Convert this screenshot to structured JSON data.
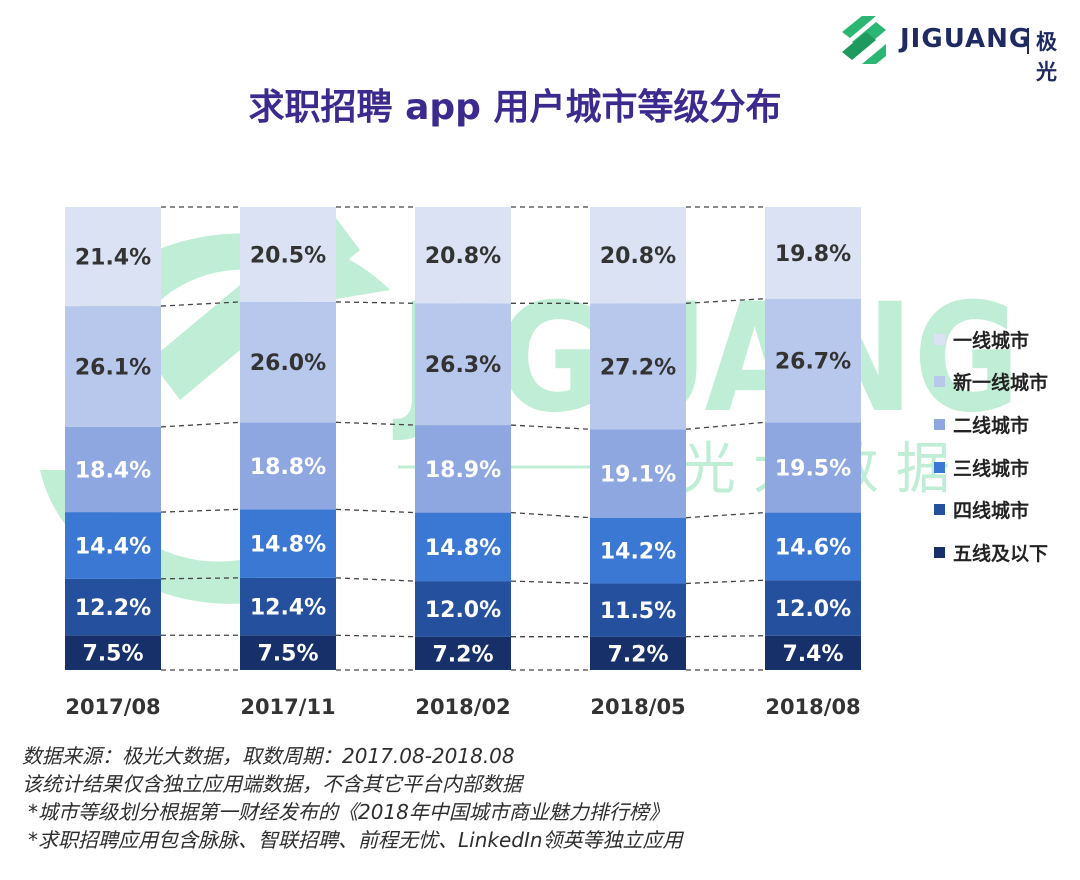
{
  "brand": {
    "name": "JIGUANG",
    "name_cn": "极光",
    "watermark": "JIGUANG",
    "watermark_cn": "极 光 大 数 据"
  },
  "title": "求职招聘 app 用户城市等级分布",
  "colors": {
    "一线城市": "#dbe2f4",
    "新一线城市": "#b8c7ec",
    "二线城市": "#8fa7e0",
    "三线城市": "#3a78d4",
    "四线城市": "#25509e",
    "五线及以下": "#17306a",
    "watermark": "#8ce0b3"
  },
  "chart_data": {
    "type": "bar",
    "stacked": true,
    "percent": true,
    "categories": [
      "2017/08",
      "2017/11",
      "2018/02",
      "2018/05",
      "2018/08"
    ],
    "series": [
      {
        "name": "五线及以下",
        "values": [
          7.5,
          7.5,
          7.2,
          7.2,
          7.4
        ],
        "labels": [
          "7.5%",
          "7.5%",
          "7.2%",
          "7.2%",
          "7.4%"
        ]
      },
      {
        "name": "四线城市",
        "values": [
          12.2,
          12.4,
          12.0,
          11.5,
          12.0
        ],
        "labels": [
          "12.2%",
          "12.4%",
          "12.0%",
          "11.5%",
          "12.0%"
        ]
      },
      {
        "name": "三线城市",
        "values": [
          14.4,
          14.8,
          14.8,
          14.2,
          14.6
        ],
        "labels": [
          "14.4%",
          "14.8%",
          "14.8%",
          "14.2%",
          "14.6%"
        ]
      },
      {
        "name": "二线城市",
        "values": [
          18.4,
          18.8,
          18.9,
          19.1,
          19.5
        ],
        "labels": [
          "18.4%",
          "18.8%",
          "18.9%",
          "19.1%",
          "19.5%"
        ]
      },
      {
        "name": "新一线城市",
        "values": [
          26.1,
          26.0,
          26.3,
          27.2,
          26.7
        ],
        "labels": [
          "26.1%",
          "26.0%",
          "26.3%",
          "27.2%",
          "26.7%"
        ]
      },
      {
        "name": "一线城市",
        "values": [
          21.4,
          20.5,
          20.8,
          20.8,
          19.8
        ],
        "labels": [
          "21.4%",
          "20.5%",
          "20.8%",
          "20.8%",
          "19.8%"
        ]
      }
    ],
    "legend_order": [
      "一线城市",
      "新一线城市",
      "二线城市",
      "三线城市",
      "四线城市",
      "五线及以下"
    ],
    "legend_position": "right",
    "connector_lines": "dashed",
    "grid": false
  },
  "notes": [
    "数据来源：极光大数据，取数周期：2017.08-2018.08",
    "该统计结果仅含独立应用端数据，不含其它平台内部数据",
    "*城市等级划分根据第一财经发布的《2018年中国城市商业魅力排行榜》",
    "*求职招聘应用包含脉脉、智联招聘、前程无忧、LinkedIn领英等独立应用"
  ]
}
